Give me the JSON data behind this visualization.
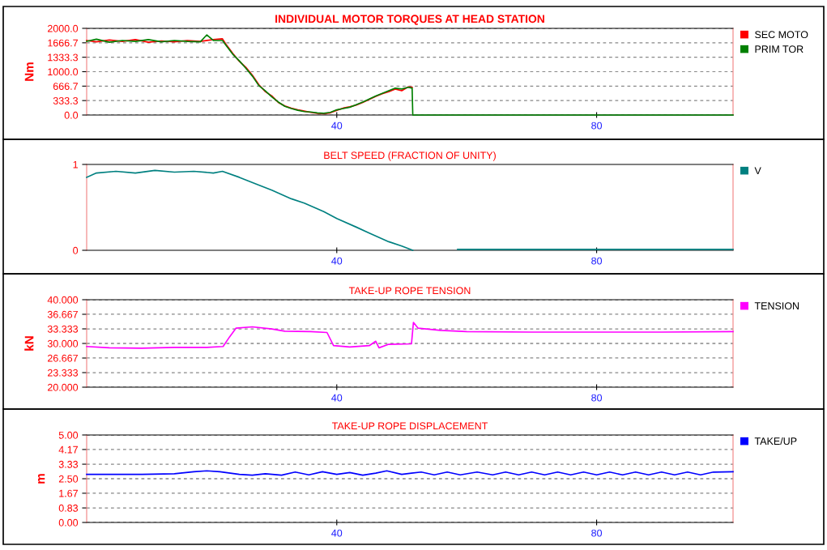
{
  "chart_data": [
    {
      "type": "line",
      "title": "INDIVIDUAL MOTOR TORQUES AT HEAD STATION",
      "ylabel": "Nm",
      "xlim": [
        1.5,
        101
      ],
      "xticks": [
        40,
        80
      ],
      "ylim": [
        0,
        2000
      ],
      "yticks": [
        {
          "value": 0,
          "label": "0.0"
        },
        {
          "value": 333.3,
          "label": "333.3"
        },
        {
          "value": 666.7,
          "label": "666.7"
        },
        {
          "value": 1000,
          "label": "1000.0"
        },
        {
          "value": 1333.3,
          "label": "1333.3"
        },
        {
          "value": 1666.7,
          "label": "1666.7"
        },
        {
          "value": 2000,
          "label": "2000.0"
        }
      ],
      "grid": "y",
      "legend": "right",
      "series": [
        {
          "name": "SEC MOTO",
          "color": "#ff0000",
          "x": [
            1.5,
            3,
            5,
            7,
            9,
            11,
            13,
            15,
            17,
            19,
            21,
            22.4,
            23,
            24,
            25,
            26,
            27,
            28,
            29,
            30,
            31,
            32,
            33,
            34,
            35,
            36,
            37,
            38,
            39,
            40,
            41,
            42,
            43,
            44,
            45,
            46,
            47,
            48,
            49,
            50,
            51,
            51.6
          ],
          "values": [
            1720,
            1690,
            1730,
            1700,
            1740,
            1680,
            1710,
            1690,
            1720,
            1700,
            1740,
            1760,
            1620,
            1420,
            1240,
            1100,
            920,
            700,
            540,
            440,
            290,
            210,
            160,
            120,
            90,
            60,
            40,
            30,
            50,
            110,
            160,
            190,
            230,
            290,
            360,
            430,
            490,
            540,
            600,
            560,
            650,
            640
          ]
        },
        {
          "name": "PRIM TOR",
          "color": "#008000",
          "x": [
            1.5,
            3,
            5,
            7,
            9,
            11,
            13,
            15,
            17,
            19,
            20,
            21,
            22.4,
            23,
            24,
            25,
            26,
            27,
            28,
            29,
            30,
            31,
            32,
            33,
            34,
            35,
            36,
            37,
            38,
            39,
            40,
            41,
            42,
            43,
            44,
            45,
            46,
            47,
            48,
            49,
            50,
            51,
            51.6,
            51.7,
            60,
            70,
            80,
            90,
            101
          ],
          "values": [
            1700,
            1750,
            1680,
            1720,
            1700,
            1740,
            1690,
            1720,
            1700,
            1690,
            1850,
            1720,
            1720,
            1600,
            1400,
            1250,
            1080,
            900,
            680,
            560,
            420,
            300,
            200,
            150,
            110,
            80,
            70,
            50,
            40,
            60,
            120,
            150,
            180,
            240,
            300,
            370,
            440,
            500,
            560,
            620,
            600,
            640,
            620,
            0,
            0,
            0,
            0,
            0,
            0
          ]
        }
      ]
    },
    {
      "type": "line",
      "title": "BELT SPEED (FRACTION OF UNITY)",
      "xlim": [
        1.5,
        101
      ],
      "xticks": [
        40,
        80
      ],
      "ylim": [
        0,
        1
      ],
      "yticks": [
        0,
        1
      ],
      "legend": "right",
      "series": [
        {
          "name": "V",
          "color": "#008080",
          "x": [
            1.5,
            3,
            6,
            9,
            12,
            15,
            18,
            21,
            22.4,
            25,
            28,
            30,
            33,
            35,
            38,
            40,
            43,
            45,
            48,
            50,
            51.7,
            55,
            58.6,
            65,
            75,
            85,
            95,
            101
          ],
          "values": [
            0.85,
            0.9,
            0.92,
            0.9,
            0.93,
            0.91,
            0.92,
            0.9,
            0.92,
            0.85,
            0.76,
            0.7,
            0.6,
            0.55,
            0.45,
            0.37,
            0.27,
            0.2,
            0.1,
            0.05,
            0,
            null,
            0.01,
            0.01,
            0.01,
            0.01,
            0.01,
            0.01
          ]
        }
      ]
    },
    {
      "type": "line",
      "title": "TAKE-UP ROPE TENSION",
      "ylabel": "kN",
      "xlim": [
        1.5,
        101
      ],
      "xticks": [
        40,
        80
      ],
      "ylim": [
        20,
        40
      ],
      "yticks": [
        {
          "value": 20,
          "label": "20.000"
        },
        {
          "value": 23.333,
          "label": "23.333"
        },
        {
          "value": 26.667,
          "label": "26.667"
        },
        {
          "value": 30,
          "label": "30.000"
        },
        {
          "value": 33.333,
          "label": "33.333"
        },
        {
          "value": 36.667,
          "label": "36.667"
        },
        {
          "value": 40,
          "label": "40.000"
        }
      ],
      "grid": "y",
      "legend": "right",
      "series": [
        {
          "name": "TENSION",
          "color": "#ff00ff",
          "x": [
            1.5,
            5,
            10,
            15,
            20,
            22.5,
            23.5,
            24.5,
            27,
            30,
            32,
            36,
            38.5,
            39.5,
            42,
            45,
            46,
            46.5,
            48,
            51.5,
            51.8,
            52.5,
            56,
            60,
            70,
            80,
            90,
            101
          ],
          "values": [
            29.3,
            29.0,
            28.9,
            29.1,
            29.1,
            29.3,
            31.5,
            33.5,
            33.8,
            33.3,
            32.8,
            32.7,
            32.5,
            29.5,
            29.2,
            29.5,
            30.5,
            29.0,
            29.8,
            29.9,
            34.8,
            33.5,
            33.0,
            32.7,
            32.6,
            32.6,
            32.6,
            32.7
          ]
        }
      ]
    },
    {
      "type": "line",
      "title": "TAKE-UP ROPE DISPLACEMENT",
      "ylabel": "m",
      "xlim": [
        1.5,
        101
      ],
      "xticks": [
        40,
        80
      ],
      "ylim": [
        0,
        5
      ],
      "yticks": [
        {
          "value": 0,
          "label": "0.00"
        },
        {
          "value": 0.83,
          "label": "0.83"
        },
        {
          "value": 1.67,
          "label": "1.67"
        },
        {
          "value": 2.5,
          "label": "2.50"
        },
        {
          "value": 3.33,
          "label": "3.33"
        },
        {
          "value": 4.17,
          "label": "4.17"
        },
        {
          "value": 5,
          "label": "5.00"
        }
      ],
      "grid": "y",
      "legend": "right",
      "series": [
        {
          "name": "TAKE/UP",
          "color": "#0000ff",
          "x": [
            1.5,
            5,
            10,
            15,
            18,
            20,
            22,
            25,
            27,
            29,
            31.5,
            33.6,
            35.7,
            37.8,
            40,
            42,
            44,
            46,
            47.7,
            50,
            53,
            55,
            57,
            59,
            61.6,
            64,
            66,
            68,
            70,
            72,
            74,
            76,
            78,
            80,
            82,
            84,
            86,
            88,
            90,
            92,
            94,
            96,
            98,
            101
          ],
          "values": [
            2.75,
            2.75,
            2.75,
            2.78,
            2.9,
            2.95,
            2.9,
            2.75,
            2.7,
            2.78,
            2.7,
            2.88,
            2.72,
            2.9,
            2.75,
            2.85,
            2.7,
            2.82,
            2.95,
            2.75,
            2.88,
            2.72,
            2.88,
            2.72,
            2.88,
            2.72,
            2.88,
            2.72,
            2.88,
            2.72,
            2.88,
            2.72,
            2.88,
            2.72,
            2.88,
            2.72,
            2.88,
            2.72,
            2.88,
            2.72,
            2.88,
            2.72,
            2.88,
            2.9
          ]
        }
      ]
    }
  ]
}
